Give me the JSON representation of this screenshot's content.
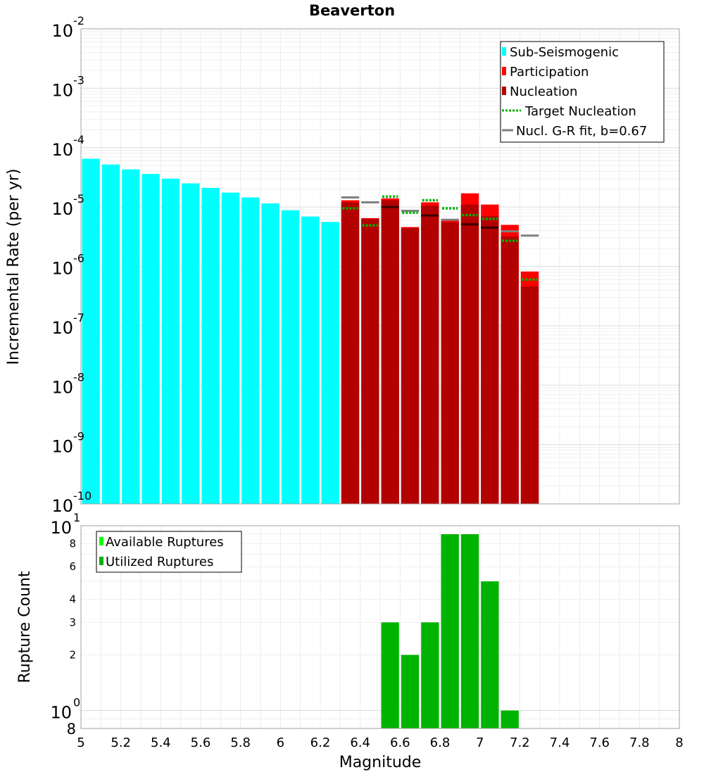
{
  "chart_data": [
    {
      "type": "bar",
      "panel": "top",
      "title": "Beaverton",
      "xlabel": "",
      "ylabel": "Incremental Rate (per yr)",
      "yscale": "log",
      "xlim": [
        5,
        8
      ],
      "ylim": [
        1e-10,
        0.01
      ],
      "bin_width": 0.1,
      "y_ticks": [
        {
          "base": "10",
          "exp": "-10",
          "value": 1e-10
        },
        {
          "base": "10",
          "exp": "-9",
          "value": 1e-09
        },
        {
          "base": "10",
          "exp": "-8",
          "value": 1e-08
        },
        {
          "base": "10",
          "exp": "-7",
          "value": 1e-07
        },
        {
          "base": "10",
          "exp": "-6",
          "value": 1e-06
        },
        {
          "base": "10",
          "exp": "-5",
          "value": 1e-05
        },
        {
          "base": "10",
          "exp": "-4",
          "value": 0.0001
        },
        {
          "base": "10",
          "exp": "-3",
          "value": 0.001
        },
        {
          "base": "10",
          "exp": "-2",
          "value": 0.01
        }
      ],
      "series": [
        {
          "name": "Sub-Seismogenic",
          "color": "#00ffff",
          "kind": "bar",
          "x": [
            5.05,
            5.15,
            5.25,
            5.35,
            5.45,
            5.55,
            5.65,
            5.75,
            5.85,
            5.95,
            6.05,
            6.15,
            6.25
          ],
          "values": [
            6.5e-05,
            5.2e-05,
            4.3e-05,
            3.6e-05,
            3e-05,
            2.5e-05,
            2.1e-05,
            1.75e-05,
            1.45e-05,
            1.15e-05,
            8.8e-06,
            6.9e-06,
            5.6e-06
          ]
        },
        {
          "name": "Participation",
          "color": "#ff0000",
          "kind": "bar",
          "x": [
            6.35,
            6.45,
            6.55,
            6.65,
            6.75,
            6.85,
            6.95,
            7.05,
            7.15,
            7.25
          ],
          "values": [
            1.3e-05,
            6.5e-06,
            1.4e-05,
            4.6e-06,
            1.2e-05,
            6.1e-06,
            1.7e-05,
            1.1e-05,
            5e-06,
            8.2e-07
          ]
        },
        {
          "name": "Nucleation",
          "color": "#b30000",
          "kind": "bar",
          "x": [
            6.35,
            6.45,
            6.55,
            6.65,
            6.75,
            6.85,
            6.95,
            7.05,
            7.15,
            7.25
          ],
          "values": [
            1.2e-05,
            6.3e-06,
            1.3e-05,
            4.4e-06,
            1.05e-05,
            5.5e-06,
            1.1e-05,
            7e-06,
            3.2e-06,
            4.6e-07
          ]
        },
        {
          "name": "Target Nucleation",
          "color": "#00b300",
          "kind": "dotted-step",
          "x": [
            6.35,
            6.45,
            6.55,
            6.65,
            6.75,
            6.85,
            6.95,
            7.05,
            7.15,
            7.25
          ],
          "values": [
            9.5e-06,
            4.9e-06,
            1.5e-05,
            8e-06,
            1.3e-05,
            9.5e-06,
            7.3e-06,
            6.3e-06,
            2.7e-06,
            6e-07
          ]
        },
        {
          "name": "Nucl. G-R fit, b=0.67",
          "color": "#808080",
          "kind": "solid-step",
          "x": [
            6.35,
            6.45,
            6.55,
            6.65,
            6.75,
            6.85,
            6.95,
            7.05,
            7.15,
            7.25
          ],
          "values": [
            1.45e-05,
            1.2e-05,
            1e-05,
            8.6e-06,
            7.2e-06,
            6.1e-06,
            5.1e-06,
            4.5e-06,
            3.9e-06,
            3.3e-06
          ]
        }
      ],
      "legend": {
        "position": "top-right",
        "entries": [
          "Sub-Seismogenic",
          "Participation",
          "Nucleation",
          "Target Nucleation",
          "Nucl. G-R fit, b=0.67"
        ]
      }
    },
    {
      "type": "bar",
      "panel": "bottom",
      "xlabel": "Magnitude",
      "ylabel": "Rupture Count",
      "yscale": "log",
      "xlim": [
        5,
        8
      ],
      "ylim": [
        0.8,
        10
      ],
      "bin_width": 0.1,
      "x_ticks": [
        "5",
        "5.2",
        "5.4",
        "5.6",
        "5.8",
        "6",
        "6.2",
        "6.4",
        "6.6",
        "6.8",
        "7",
        "7.2",
        "7.4",
        "7.6",
        "7.8",
        "8"
      ],
      "x_tick_values": [
        5,
        5.2,
        5.4,
        5.6,
        5.8,
        6,
        6.2,
        6.4,
        6.6,
        6.8,
        7,
        7.2,
        7.4,
        7.6,
        7.8,
        8
      ],
      "y_ticks_major": [
        {
          "base": "10",
          "exp": "0",
          "value": 1
        },
        {
          "base": "10",
          "exp": "1",
          "value": 10
        }
      ],
      "y_ticks_minor": [
        {
          "label": "2",
          "value": 2
        },
        {
          "label": "3",
          "value": 3
        },
        {
          "label": "4",
          "value": 4
        },
        {
          "label": "6",
          "value": 6
        },
        {
          "label": "8",
          "value": 8
        }
      ],
      "y_bottom_label": {
        "label": "8",
        "value": 0.8
      },
      "series": [
        {
          "name": "Available Ruptures",
          "color": "#00ff00",
          "kind": "bar",
          "x": [
            6.55,
            6.65,
            6.75,
            6.85,
            6.95,
            7.05,
            7.15
          ],
          "values": [
            3,
            2,
            3,
            9,
            9,
            5,
            1
          ]
        },
        {
          "name": "Utilized Ruptures",
          "color": "#00b300",
          "kind": "bar",
          "x": [
            6.55,
            6.65,
            6.75,
            6.85,
            6.95,
            7.05,
            7.15
          ],
          "values": [
            3,
            2,
            3,
            9,
            9,
            5,
            1
          ]
        }
      ],
      "legend": {
        "position": "top-left",
        "entries": [
          "Available Ruptures",
          "Utilized Ruptures"
        ]
      }
    }
  ]
}
